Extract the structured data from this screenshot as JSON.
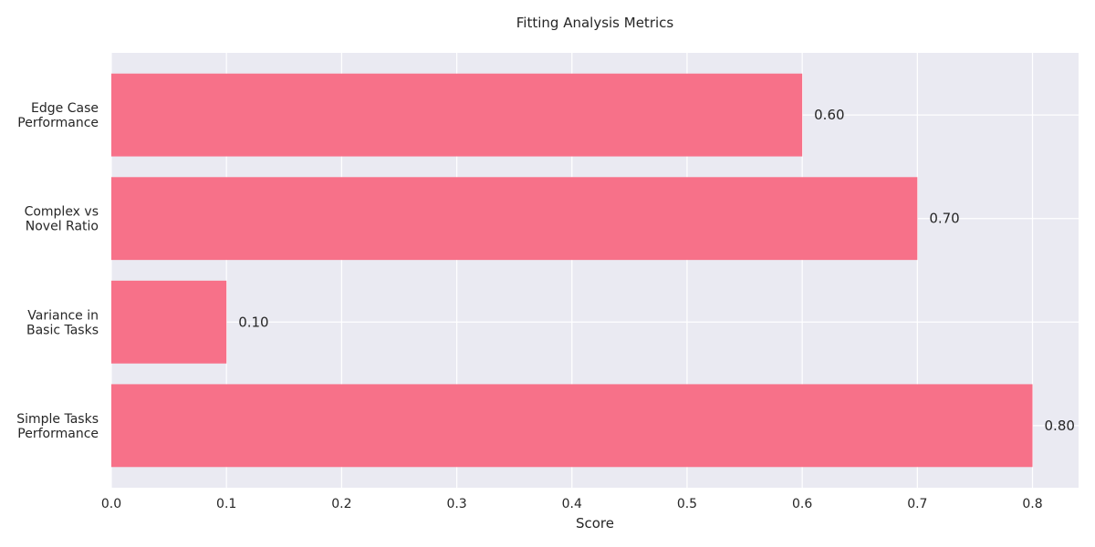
{
  "chart_data": {
    "type": "bar",
    "orientation": "horizontal",
    "title": "Fitting Analysis Metrics",
    "xlabel": "Score",
    "ylabel": "",
    "categories": [
      [
        "Simple Tasks",
        "Performance"
      ],
      [
        "Variance in",
        "Basic Tasks"
      ],
      [
        "Complex vs",
        "Novel Ratio"
      ],
      [
        "Edge Case",
        "Performance"
      ]
    ],
    "values": [
      0.8,
      0.1,
      0.7,
      0.6
    ],
    "value_labels": [
      "0.80",
      "0.10",
      "0.70",
      "0.60"
    ],
    "xlim": [
      0,
      0.84
    ],
    "xticks": [
      0.0,
      0.1,
      0.2,
      0.3,
      0.4,
      0.5,
      0.6,
      0.7,
      0.8
    ],
    "xtick_labels": [
      "0.0",
      "0.1",
      "0.2",
      "0.3",
      "0.4",
      "0.5",
      "0.6",
      "0.7",
      "0.8"
    ],
    "grid": true,
    "legend": "none",
    "colors": {
      "bar": "#f77189",
      "plot_background": "#eaeaf2",
      "grid": "#ffffff",
      "text": "#262626"
    }
  }
}
